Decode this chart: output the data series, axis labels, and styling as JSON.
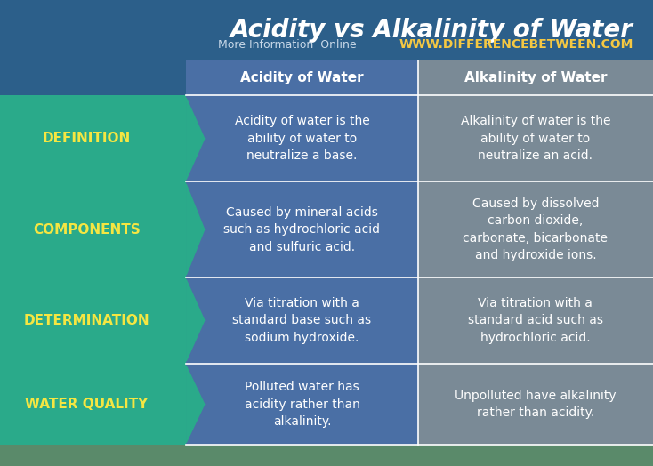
{
  "title": "Acidity vs Alkalinity of Water",
  "subtitle": "More Information  Online",
  "website": "WWW.DIFFERENCEBETWEEN.COM",
  "col1_header": "Acidity of Water",
  "col2_header": "Alkalinity of Water",
  "rows": [
    {
      "label": "DEFINITION",
      "col1": "Acidity of water is the\nability of water to\nneutralize a base.",
      "col2": "Alkalinity of water is the\nability of water to\nneutralize an acid."
    },
    {
      "label": "COMPONENTS",
      "col1": "Caused by mineral acids\nsuch as hydrochloric acid\nand sulfuric acid.",
      "col2": "Caused by dissolved\ncarbon dioxide,\ncarbonate, bicarbonate\nand hydroxide ions."
    },
    {
      "label": "DETERMINATION",
      "col1": "Via titration with a\nstandard base such as\nsodium hydroxide.",
      "col2": "Via titration with a\nstandard acid such as\nhydrochloric acid."
    },
    {
      "label": "WATER QUALITY",
      "col1": "Polluted water has\nacidity rather than\nalkalinity.",
      "col2": "Unpolluted have alkalinity\nrather than acidity."
    }
  ],
  "bg_image_color": "#5a8a6a",
  "title_bg_color": "#2c5f8a",
  "header_bg_color": "#4a6fa5",
  "label_bg_color": "#2aaa8a",
  "col1_bg_color": "#4a6fa5",
  "col2_bg_color": "#7a8a96",
  "label_text_color": "#f5e642",
  "header_text_color": "#ffffff",
  "col1_text_color": "#ffffff",
  "col2_text_color": "#ffffff",
  "title_text_color": "#ffffff",
  "subtitle_text_color": "#c8d8e8",
  "website_text_color": "#f5c842",
  "title_fontsize": 20,
  "header_fontsize": 11,
  "label_fontsize": 11,
  "cell_fontsize": 10,
  "subtitle_fontsize": 9,
  "website_fontsize": 10
}
